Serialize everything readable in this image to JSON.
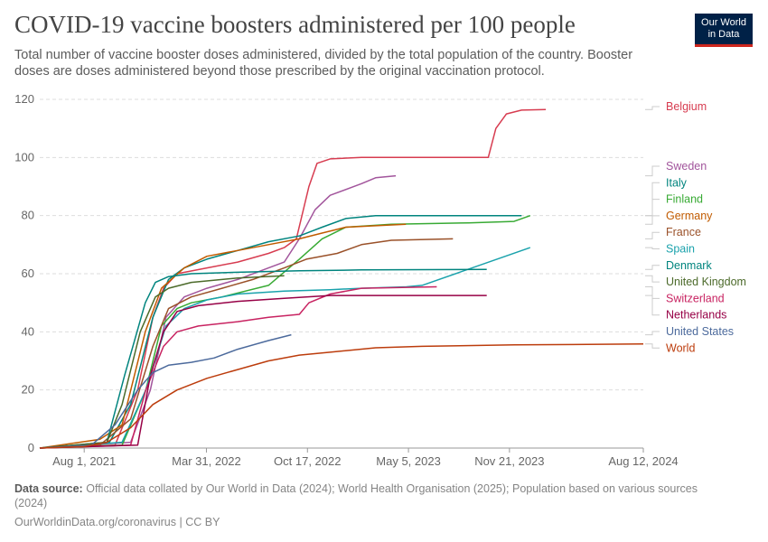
{
  "header": {
    "title": "COVID-19 vaccine boosters administered per 100 people",
    "subtitle": "Total number of vaccine booster doses administered, divided by the total population of the country. Booster doses are doses administered beyond those prescribed by the original vaccination protocol.",
    "logo_line1": "Our World",
    "logo_line2": "in Data"
  },
  "footer": {
    "source_label": "Data source:",
    "source_text": "Official data collated by Our World in Data (2024); World Health Organisation (2025); Population based on various sources (2024)",
    "url_text": "OurWorldinData.org/coronavirus | CC BY"
  },
  "chart_data": {
    "type": "line",
    "x_ticks": [
      "2021-08-01",
      "2022-03-31",
      "2022-10-17",
      "2023-05-05",
      "2023-11-21",
      "2024-08-12"
    ],
    "x_tick_labels": [
      "Aug 1, 2021",
      "Mar 31, 2022",
      "Oct 17, 2022",
      "May 5, 2023",
      "Nov 21, 2023",
      "Aug 12, 2024"
    ],
    "xlim": [
      "2021-05-05",
      "2024-08-12"
    ],
    "ylim": [
      0,
      120
    ],
    "y_ticks": [
      0,
      20,
      40,
      60,
      80,
      100,
      120
    ],
    "grid": "horizontal dashed",
    "legend": "right, labels at line ends",
    "series": [
      {
        "name": "Belgium",
        "color": "#d73c50",
        "points": [
          [
            "2021-05-05",
            0
          ],
          [
            "2021-10-01",
            1
          ],
          [
            "2021-11-15",
            20
          ],
          [
            "2021-12-15",
            45
          ],
          [
            "2022-01-05",
            55
          ],
          [
            "2022-02-01",
            60
          ],
          [
            "2022-04-01",
            62
          ],
          [
            "2022-06-01",
            64
          ],
          [
            "2022-08-01",
            67
          ],
          [
            "2022-09-01",
            69
          ],
          [
            "2022-09-25",
            72
          ],
          [
            "2022-10-20",
            90
          ],
          [
            "2022-11-05",
            98
          ],
          [
            "2022-12-01",
            99.5
          ],
          [
            "2023-02-01",
            100
          ],
          [
            "2023-10-10",
            100
          ],
          [
            "2023-10-25",
            110
          ],
          [
            "2023-11-15",
            115
          ],
          [
            "2023-12-15",
            116.3
          ],
          [
            "2024-02-01",
            116.5
          ]
        ]
      },
      {
        "name": "Sweden",
        "color": "#a2559c",
        "points": [
          [
            "2021-05-05",
            0
          ],
          [
            "2021-11-01",
            2
          ],
          [
            "2021-12-10",
            20
          ],
          [
            "2022-01-10",
            45
          ],
          [
            "2022-02-15",
            52
          ],
          [
            "2022-04-01",
            55
          ],
          [
            "2022-06-01",
            58
          ],
          [
            "2022-08-01",
            62
          ],
          [
            "2022-09-01",
            64
          ],
          [
            "2022-10-01",
            72
          ],
          [
            "2022-11-01",
            82
          ],
          [
            "2022-12-01",
            87
          ],
          [
            "2023-02-01",
            91
          ],
          [
            "2023-03-01",
            93
          ],
          [
            "2023-04-10",
            93.7
          ]
        ]
      },
      {
        "name": "Italy",
        "color": "#00847e",
        "points": [
          [
            "2021-05-05",
            0
          ],
          [
            "2021-09-20",
            2
          ],
          [
            "2021-11-01",
            15
          ],
          [
            "2021-12-15",
            45
          ],
          [
            "2022-01-15",
            58
          ],
          [
            "2022-02-15",
            62
          ],
          [
            "2022-04-01",
            65
          ],
          [
            "2022-06-01",
            68
          ],
          [
            "2022-08-01",
            71
          ],
          [
            "2022-10-01",
            73
          ],
          [
            "2022-11-15",
            76
          ],
          [
            "2023-01-01",
            79
          ],
          [
            "2023-03-01",
            80
          ],
          [
            "2023-08-01",
            80
          ],
          [
            "2023-12-15",
            80
          ]
        ]
      },
      {
        "name": "Finland",
        "color": "#38aa34",
        "points": [
          [
            "2021-05-05",
            0
          ],
          [
            "2021-10-15",
            1
          ],
          [
            "2021-12-01",
            20
          ],
          [
            "2022-01-01",
            42
          ],
          [
            "2022-02-01",
            48
          ],
          [
            "2022-03-01",
            50
          ],
          [
            "2022-05-01",
            52
          ],
          [
            "2022-08-01",
            56
          ],
          [
            "2022-10-01",
            65
          ],
          [
            "2022-11-15",
            72
          ],
          [
            "2023-01-01",
            76
          ],
          [
            "2023-04-01",
            77
          ],
          [
            "2023-09-01",
            77.5
          ],
          [
            "2023-11-30",
            78
          ],
          [
            "2024-01-01",
            80
          ]
        ]
      },
      {
        "name": "Germany",
        "color": "#c15b00",
        "points": [
          [
            "2021-05-05",
            0
          ],
          [
            "2021-09-01",
            3
          ],
          [
            "2021-10-15",
            8
          ],
          [
            "2021-11-30",
            40
          ],
          [
            "2022-01-01",
            55
          ],
          [
            "2022-02-15",
            62
          ],
          [
            "2022-04-01",
            66
          ],
          [
            "2022-06-01",
            68
          ],
          [
            "2022-08-01",
            70
          ],
          [
            "2022-10-01",
            72
          ],
          [
            "2022-11-15",
            74
          ],
          [
            "2023-01-01",
            76
          ],
          [
            "2023-03-01",
            76.5
          ],
          [
            "2023-04-30",
            77
          ]
        ]
      },
      {
        "name": "France",
        "color": "#9a5129",
        "points": [
          [
            "2021-05-05",
            0
          ],
          [
            "2021-09-01",
            1
          ],
          [
            "2021-11-01",
            10
          ],
          [
            "2021-12-15",
            35
          ],
          [
            "2022-01-15",
            48
          ],
          [
            "2022-03-01",
            52
          ],
          [
            "2022-05-01",
            55
          ],
          [
            "2022-07-01",
            58
          ],
          [
            "2022-09-01",
            62
          ],
          [
            "2022-10-15",
            65
          ],
          [
            "2022-12-15",
            67
          ],
          [
            "2023-02-01",
            70
          ],
          [
            "2023-04-01",
            71.5
          ],
          [
            "2023-08-01",
            72
          ]
        ]
      },
      {
        "name": "Spain",
        "color": "#1aa2ac",
        "points": [
          [
            "2021-05-05",
            0
          ],
          [
            "2021-10-15",
            2
          ],
          [
            "2021-12-01",
            20
          ],
          [
            "2022-01-10",
            42
          ],
          [
            "2022-02-15",
            48
          ],
          [
            "2022-04-01",
            51
          ],
          [
            "2022-06-01",
            53
          ],
          [
            "2022-09-01",
            54
          ],
          [
            "2022-12-01",
            54.5
          ],
          [
            "2023-02-01",
            55
          ],
          [
            "2023-05-01",
            55.5
          ],
          [
            "2023-06-01",
            56
          ],
          [
            "2024-01-01",
            69
          ]
        ]
      },
      {
        "name": "Denmark",
        "color": "#00847e",
        "points": [
          [
            "2021-05-05",
            0
          ],
          [
            "2021-09-15",
            2
          ],
          [
            "2021-10-20",
            25
          ],
          [
            "2021-11-30",
            50
          ],
          [
            "2021-12-20",
            57
          ],
          [
            "2022-01-15",
            59
          ],
          [
            "2022-03-01",
            60
          ],
          [
            "2022-06-01",
            60.5
          ],
          [
            "2022-10-01",
            61
          ],
          [
            "2023-02-01",
            61.3
          ],
          [
            "2023-10-07",
            61.5
          ]
        ]
      },
      {
        "name": "United Kingdom",
        "color": "#4c6a2a",
        "points": [
          [
            "2021-05-05",
            0
          ],
          [
            "2021-09-15",
            2
          ],
          [
            "2021-10-15",
            15
          ],
          [
            "2021-11-20",
            40
          ],
          [
            "2021-12-20",
            52
          ],
          [
            "2022-01-15",
            55
          ],
          [
            "2022-03-01",
            57
          ],
          [
            "2022-06-01",
            58.5
          ],
          [
            "2022-09-01",
            59.3
          ]
        ]
      },
      {
        "name": "Switzerland",
        "color": "#c82361",
        "points": [
          [
            "2021-05-05",
            0
          ],
          [
            "2021-11-01",
            1
          ],
          [
            "2021-12-01",
            20
          ],
          [
            "2022-01-05",
            35
          ],
          [
            "2022-02-01",
            40
          ],
          [
            "2022-03-15",
            42
          ],
          [
            "2022-06-01",
            43.5
          ],
          [
            "2022-08-01",
            45
          ],
          [
            "2022-10-01",
            46
          ],
          [
            "2022-10-20",
            50
          ],
          [
            "2022-12-01",
            53
          ],
          [
            "2023-02-01",
            55
          ],
          [
            "2023-06-30",
            55.5
          ]
        ]
      },
      {
        "name": "Netherlands",
        "color": "#970046",
        "points": [
          [
            "2021-05-05",
            0
          ],
          [
            "2021-11-15",
            1
          ],
          [
            "2021-12-10",
            25
          ],
          [
            "2022-01-05",
            40
          ],
          [
            "2022-02-01",
            47
          ],
          [
            "2022-03-15",
            49
          ],
          [
            "2022-06-01",
            50.5
          ],
          [
            "2022-09-01",
            51.5
          ],
          [
            "2022-12-01",
            52.5
          ],
          [
            "2023-03-01",
            52.5
          ],
          [
            "2023-10-07",
            52.5
          ]
        ]
      },
      {
        "name": "United States",
        "color": "#4c6a9c",
        "points": [
          [
            "2021-05-05",
            0
          ],
          [
            "2021-08-15",
            1
          ],
          [
            "2021-10-01",
            8
          ],
          [
            "2021-11-15",
            20
          ],
          [
            "2021-12-15",
            26
          ],
          [
            "2022-01-15",
            28.5
          ],
          [
            "2022-03-01",
            29.5
          ],
          [
            "2022-04-15",
            31
          ],
          [
            "2022-06-01",
            34
          ],
          [
            "2022-08-01",
            37
          ],
          [
            "2022-09-15",
            39
          ]
        ]
      },
      {
        "name": "World",
        "color": "#bc3c0c",
        "points": [
          [
            "2021-05-05",
            0
          ],
          [
            "2021-08-01",
            0.5
          ],
          [
            "2021-09-15",
            2
          ],
          [
            "2021-11-01",
            7
          ],
          [
            "2021-12-15",
            15
          ],
          [
            "2022-02-01",
            20
          ],
          [
            "2022-04-01",
            24
          ],
          [
            "2022-06-01",
            27
          ],
          [
            "2022-08-01",
            30
          ],
          [
            "2022-10-01",
            32
          ],
          [
            "2022-12-01",
            33
          ],
          [
            "2023-03-01",
            34.5
          ],
          [
            "2023-06-01",
            35
          ],
          [
            "2023-12-01",
            35.5
          ],
          [
            "2024-08-12",
            35.8
          ]
        ]
      }
    ]
  }
}
